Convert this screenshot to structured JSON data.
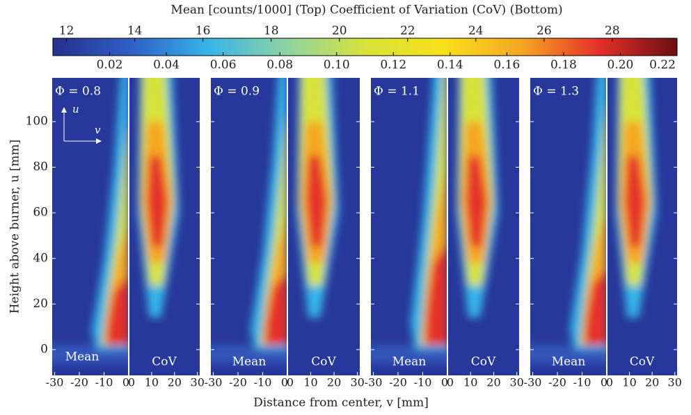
{
  "chart_data": {
    "type": "heatmap",
    "title": "Mean [counts/1000] (Top)  Coefficient of Variation (CoV) (Bottom)",
    "colorbar": {
      "top_lim": [
        11.6,
        29.9
      ],
      "top_ticks": [
        12,
        14,
        16,
        18,
        20,
        22,
        24,
        26,
        28
      ],
      "bottom_lim": [
        0,
        0.22
      ],
      "bottom_ticks": [
        {
          "value": 0.02,
          "label": "0.02"
        },
        {
          "value": 0.04,
          "label": "0.04"
        },
        {
          "value": 0.06,
          "label": "0.06"
        },
        {
          "value": 0.08,
          "label": "0.08"
        },
        {
          "value": 0.1,
          "label": "0.10"
        },
        {
          "value": 0.12,
          "label": "0.12"
        },
        {
          "value": 0.14,
          "label": "0.14"
        },
        {
          "value": 0.16,
          "label": "0.16"
        },
        {
          "value": 0.18,
          "label": "0.18"
        },
        {
          "value": 0.2,
          "label": "0.20"
        },
        {
          "value": 0.22,
          "label": "0.22"
        }
      ],
      "colors": [
        "#27308c",
        "#2f5fc7",
        "#37b4e8",
        "#8fd3a2",
        "#d7e23a",
        "#f7e01b",
        "#f5a623",
        "#e5302a",
        "#6b0f12"
      ]
    },
    "panels": [
      {
        "label": "Φ = 0.8"
      },
      {
        "label": "Φ = 0.9"
      },
      {
        "label": "Φ = 1.1"
      },
      {
        "label": "Φ = 1.3"
      }
    ],
    "mean_label": "Mean",
    "cov_label": "CoV",
    "mean_xlim": [
      -31,
      0
    ],
    "mean_xticks": [
      -30,
      -20,
      -10,
      0
    ],
    "cov_xlim": [
      0,
      31
    ],
    "cov_xticks": [
      0,
      10,
      20,
      30
    ],
    "ylim": [
      -11.3,
      119.2
    ],
    "yticks": [
      0,
      20,
      40,
      60,
      80,
      100
    ],
    "xlabel": "Distance from center, v  [mm]",
    "ylabel": "Height above burner, u  [mm]",
    "annot_u": "u",
    "annot_v": "v"
  }
}
